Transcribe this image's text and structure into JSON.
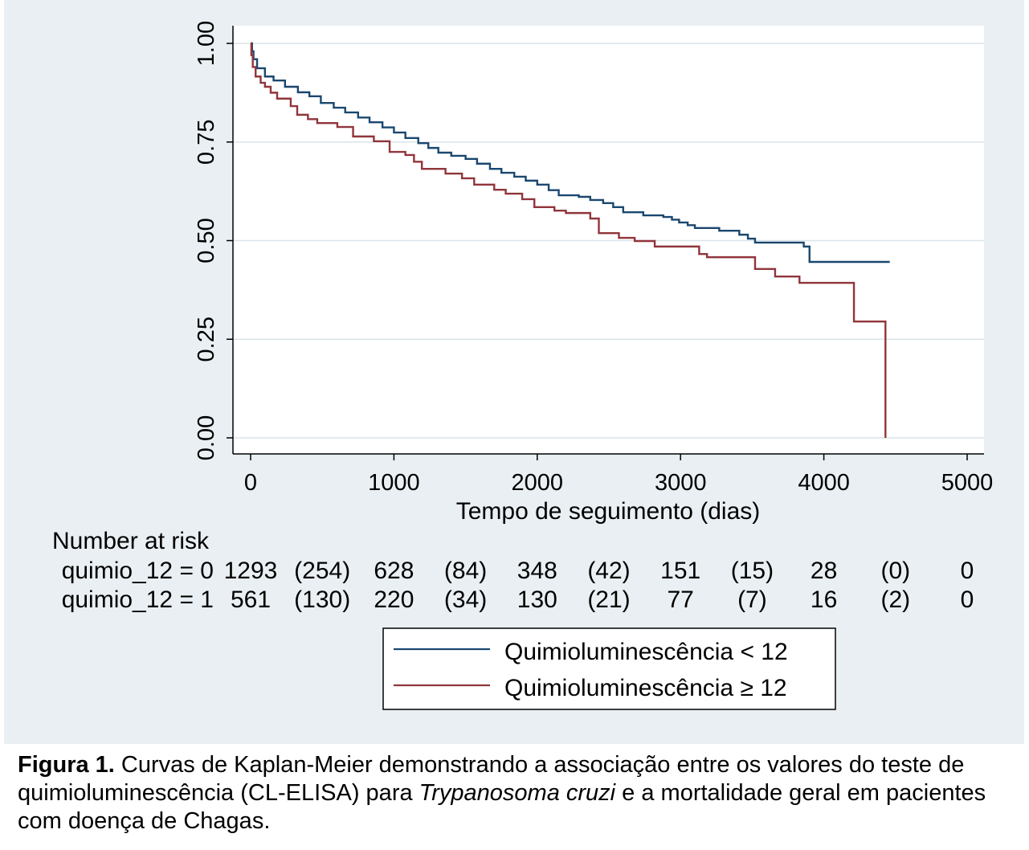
{
  "chart_data": {
    "type": "line",
    "step": true,
    "xlabel": "Tempo de seguimento (dias)",
    "xlim": [
      0,
      5000
    ],
    "ylim": [
      0,
      1
    ],
    "x_ticks": [
      0,
      1000,
      2000,
      3000,
      4000,
      5000
    ],
    "x_tick_labels": [
      "0",
      "1000",
      "2000",
      "3000",
      "4000",
      "5000"
    ],
    "y_ticks": [
      0,
      0.25,
      0.5,
      0.75,
      1
    ],
    "y_tick_labels": [
      "0.00",
      "0.25",
      "0.50",
      "0.75",
      "1.00"
    ],
    "grid": "horizontal",
    "legend_position": "bottom",
    "series": [
      {
        "name": "Quimioluminescência < 12",
        "color": "#1a476f",
        "x": [
          0,
          10,
          20,
          45,
          100,
          160,
          240,
          330,
          410,
          490,
          580,
          660,
          750,
          830,
          920,
          1000,
          1080,
          1170,
          1240,
          1310,
          1400,
          1500,
          1580,
          1670,
          1750,
          1840,
          1920,
          2000,
          2080,
          2150,
          2290,
          2370,
          2460,
          2530,
          2600,
          2740,
          2880,
          2940,
          2990,
          3050,
          3100,
          3270,
          3410,
          3470,
          3520,
          3860,
          3900,
          4460
        ],
        "y": [
          1.0,
          0.98,
          0.96,
          0.937,
          0.916,
          0.906,
          0.89,
          0.876,
          0.866,
          0.849,
          0.837,
          0.825,
          0.812,
          0.8,
          0.787,
          0.774,
          0.76,
          0.747,
          0.735,
          0.723,
          0.715,
          0.707,
          0.695,
          0.682,
          0.672,
          0.662,
          0.652,
          0.642,
          0.628,
          0.615,
          0.611,
          0.603,
          0.595,
          0.585,
          0.572,
          0.564,
          0.56,
          0.553,
          0.546,
          0.539,
          0.532,
          0.525,
          0.515,
          0.505,
          0.495,
          0.485,
          0.446,
          0.446
        ]
      },
      {
        "name": "Quimioluminescência ≥ 12",
        "color": "#90353b",
        "x": [
          0,
          5,
          15,
          35,
          70,
          100,
          140,
          185,
          280,
          325,
          400,
          465,
          605,
          715,
          860,
          970,
          1080,
          1140,
          1195,
          1360,
          1475,
          1560,
          1700,
          1780,
          1895,
          1980,
          2120,
          2200,
          2370,
          2430,
          2570,
          2680,
          2820,
          3130,
          3185,
          3520,
          3660,
          3830,
          4210,
          4430
        ],
        "y": [
          1.0,
          0.97,
          0.94,
          0.916,
          0.9,
          0.89,
          0.875,
          0.86,
          0.841,
          0.819,
          0.808,
          0.798,
          0.788,
          0.764,
          0.752,
          0.725,
          0.717,
          0.7,
          0.682,
          0.67,
          0.658,
          0.642,
          0.629,
          0.619,
          0.605,
          0.585,
          0.576,
          0.57,
          0.556,
          0.519,
          0.507,
          0.499,
          0.485,
          0.466,
          0.458,
          0.428,
          0.409,
          0.393,
          0.295,
          0.0
        ]
      }
    ],
    "risk_table": {
      "title": "Number at risk",
      "rows": [
        {
          "label": "quimio_12 = 0",
          "values": [
            "1293",
            "(254)",
            "628",
            "(84)",
            "348",
            "(42)",
            "151",
            "(15)",
            "28",
            "(0)",
            "0"
          ]
        },
        {
          "label": "quimio_12 = 1",
          "values": [
            "561",
            "(130)",
            "220",
            "(34)",
            "130",
            "(21)",
            "77",
            "(7)",
            "16",
            "(2)",
            "0"
          ]
        }
      ]
    }
  },
  "caption": {
    "label": "Figura 1.",
    "text_1": "Curvas de Kaplan-Meier demonstrando a associação entre os valores do teste de",
    "text_2": "quimioluminescência (CL-ELISA) para",
    "species": "Trypanosoma cruzi",
    "text_3": "e a mortalidade geral em pacientes",
    "text_4": "com doença de Chagas."
  }
}
